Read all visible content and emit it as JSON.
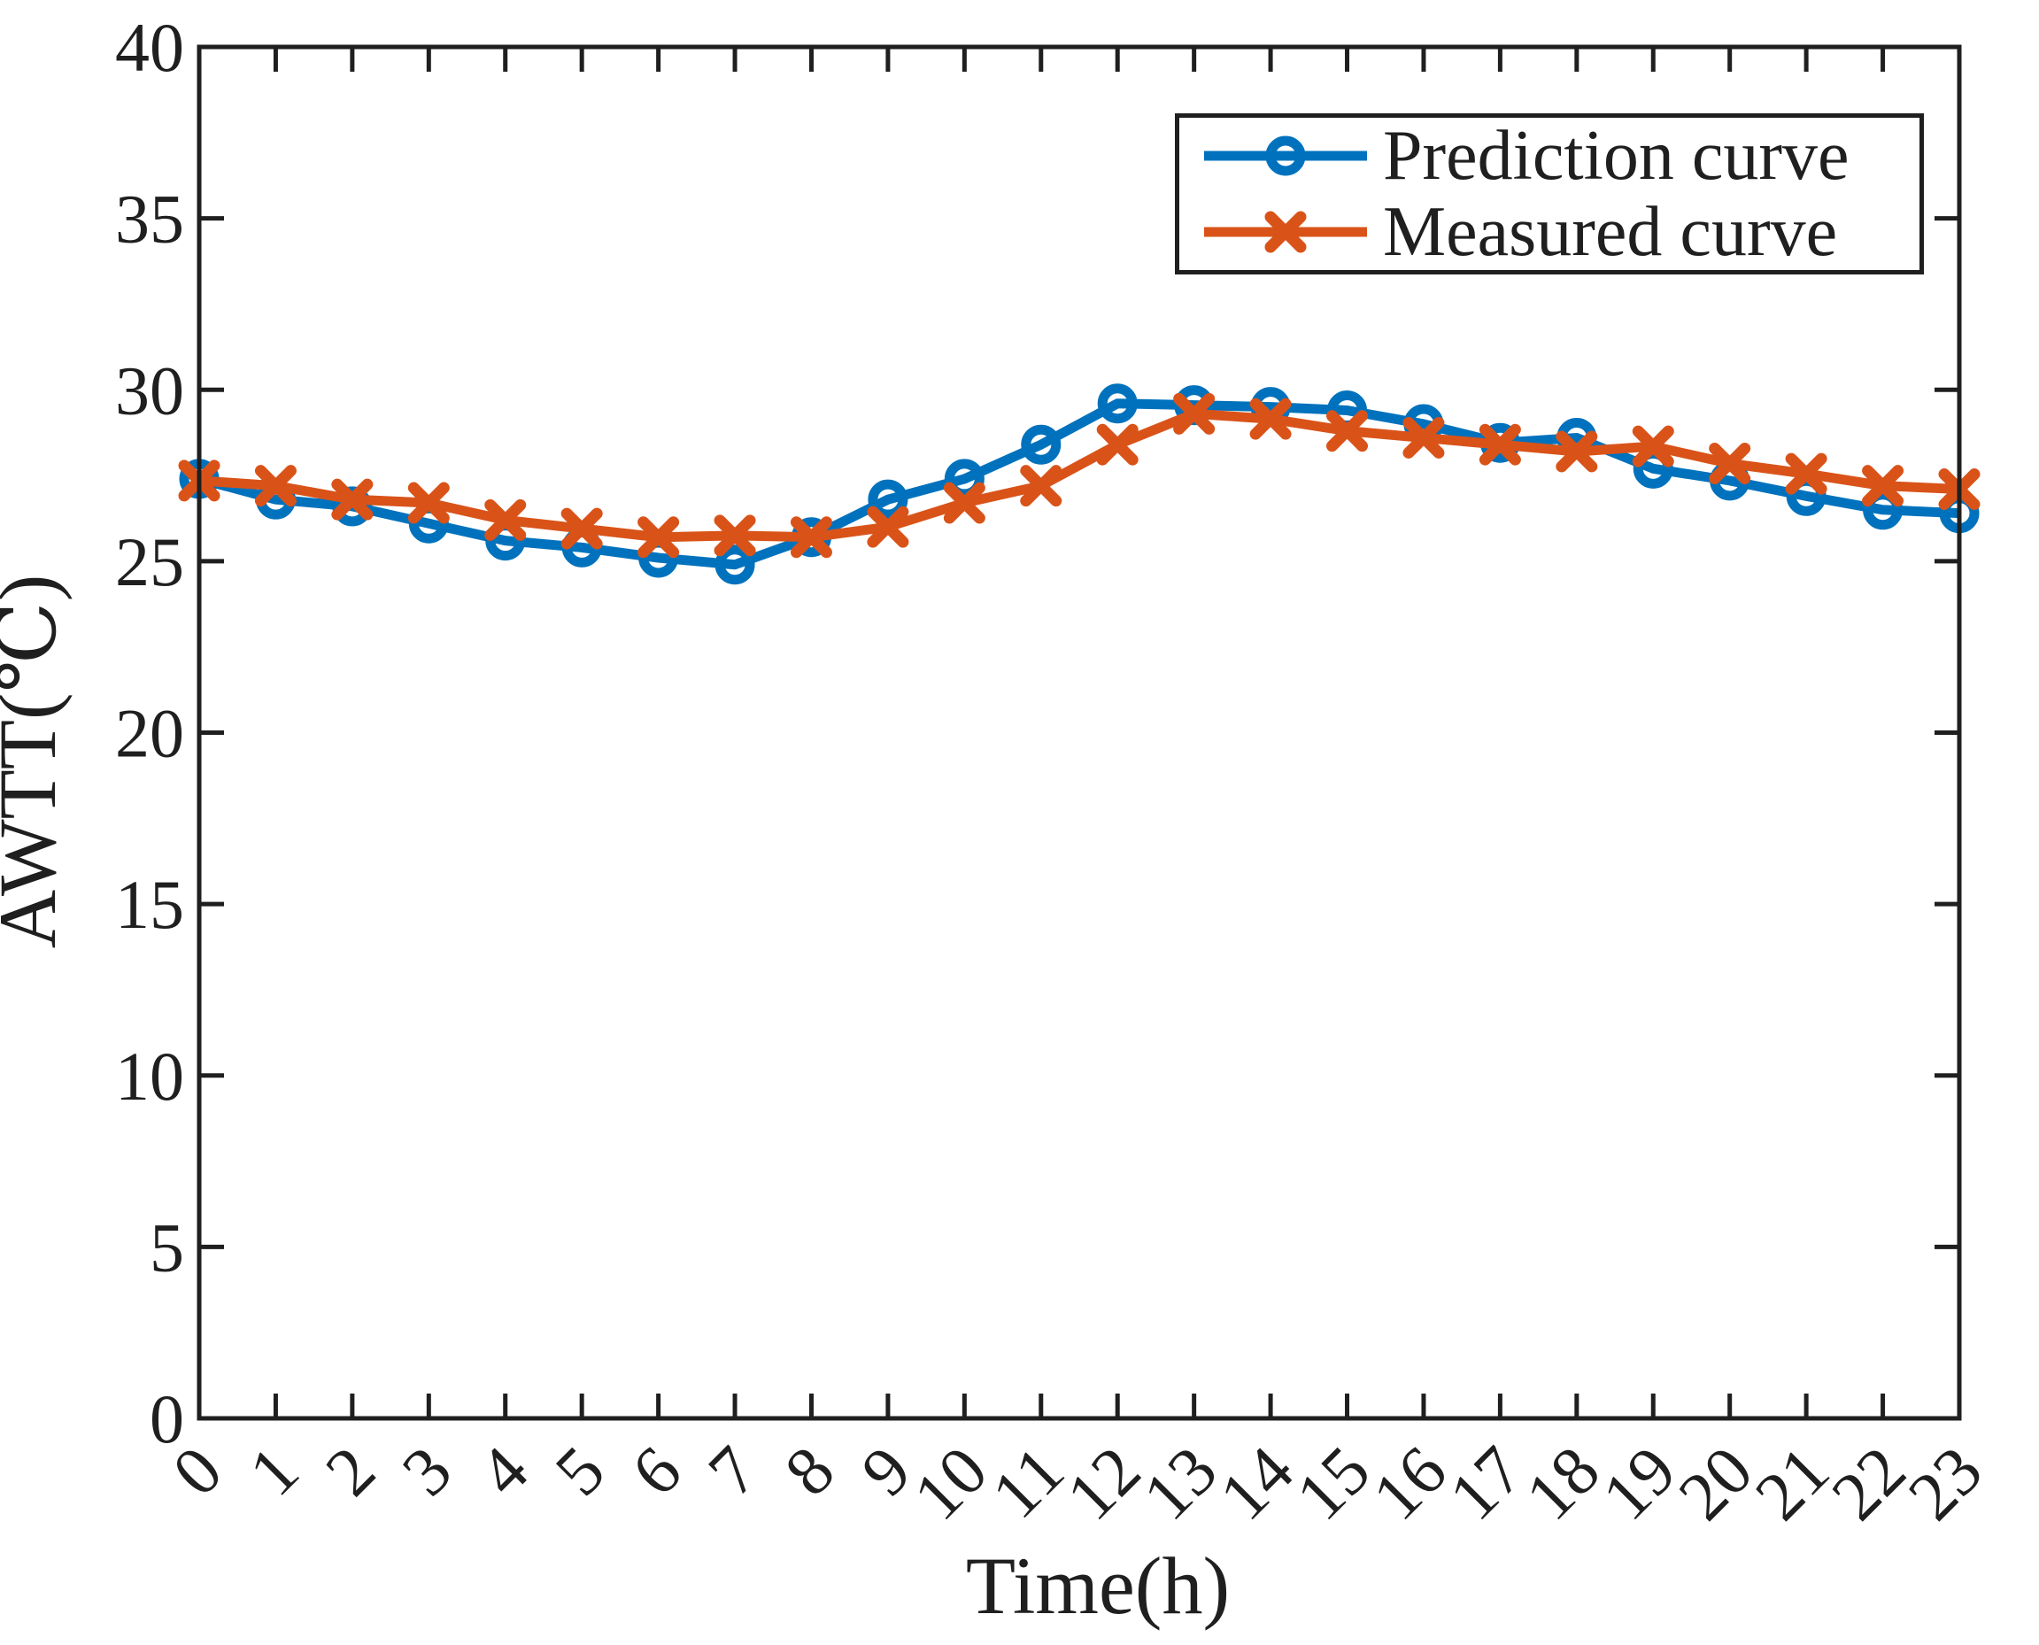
{
  "figure": {
    "background": "#ffffff",
    "axis_color": "#1f1f1f"
  },
  "chart_data": {
    "type": "line",
    "title": "",
    "xlabel": "Time(h)",
    "ylabel": "AWTT(℃)",
    "xlim": [
      0,
      23
    ],
    "ylim": [
      0,
      40
    ],
    "xticks": [
      0,
      1,
      2,
      3,
      4,
      5,
      6,
      7,
      8,
      9,
      10,
      11,
      12,
      13,
      14,
      15,
      16,
      17,
      18,
      19,
      20,
      21,
      22,
      23
    ],
    "yticks": [
      0,
      5,
      10,
      15,
      20,
      25,
      30,
      35,
      40
    ],
    "grid": false,
    "legend_position": "top-right",
    "x": [
      0,
      1,
      2,
      3,
      4,
      5,
      6,
      7,
      8,
      9,
      10,
      11,
      12,
      13,
      14,
      15,
      16,
      17,
      18,
      19,
      20,
      21,
      22,
      23
    ],
    "series": [
      {
        "name": "Prediction curve",
        "color": "#0072BD",
        "marker": "circle",
        "values": [
          27.4,
          26.8,
          26.6,
          26.1,
          25.6,
          25.4,
          25.1,
          24.9,
          25.7,
          26.8,
          27.4,
          28.4,
          29.6,
          29.55,
          29.5,
          29.4,
          29.0,
          28.45,
          28.6,
          27.7,
          27.35,
          26.9,
          26.5,
          26.4
        ]
      },
      {
        "name": "Measured curve",
        "color": "#D95319",
        "marker": "x",
        "values": [
          27.35,
          27.2,
          26.8,
          26.7,
          26.2,
          25.95,
          25.7,
          25.75,
          25.7,
          26.0,
          26.7,
          27.2,
          28.4,
          29.3,
          29.15,
          28.8,
          28.6,
          28.4,
          28.2,
          28.35,
          27.85,
          27.55,
          27.2,
          27.1
        ]
      }
    ]
  }
}
